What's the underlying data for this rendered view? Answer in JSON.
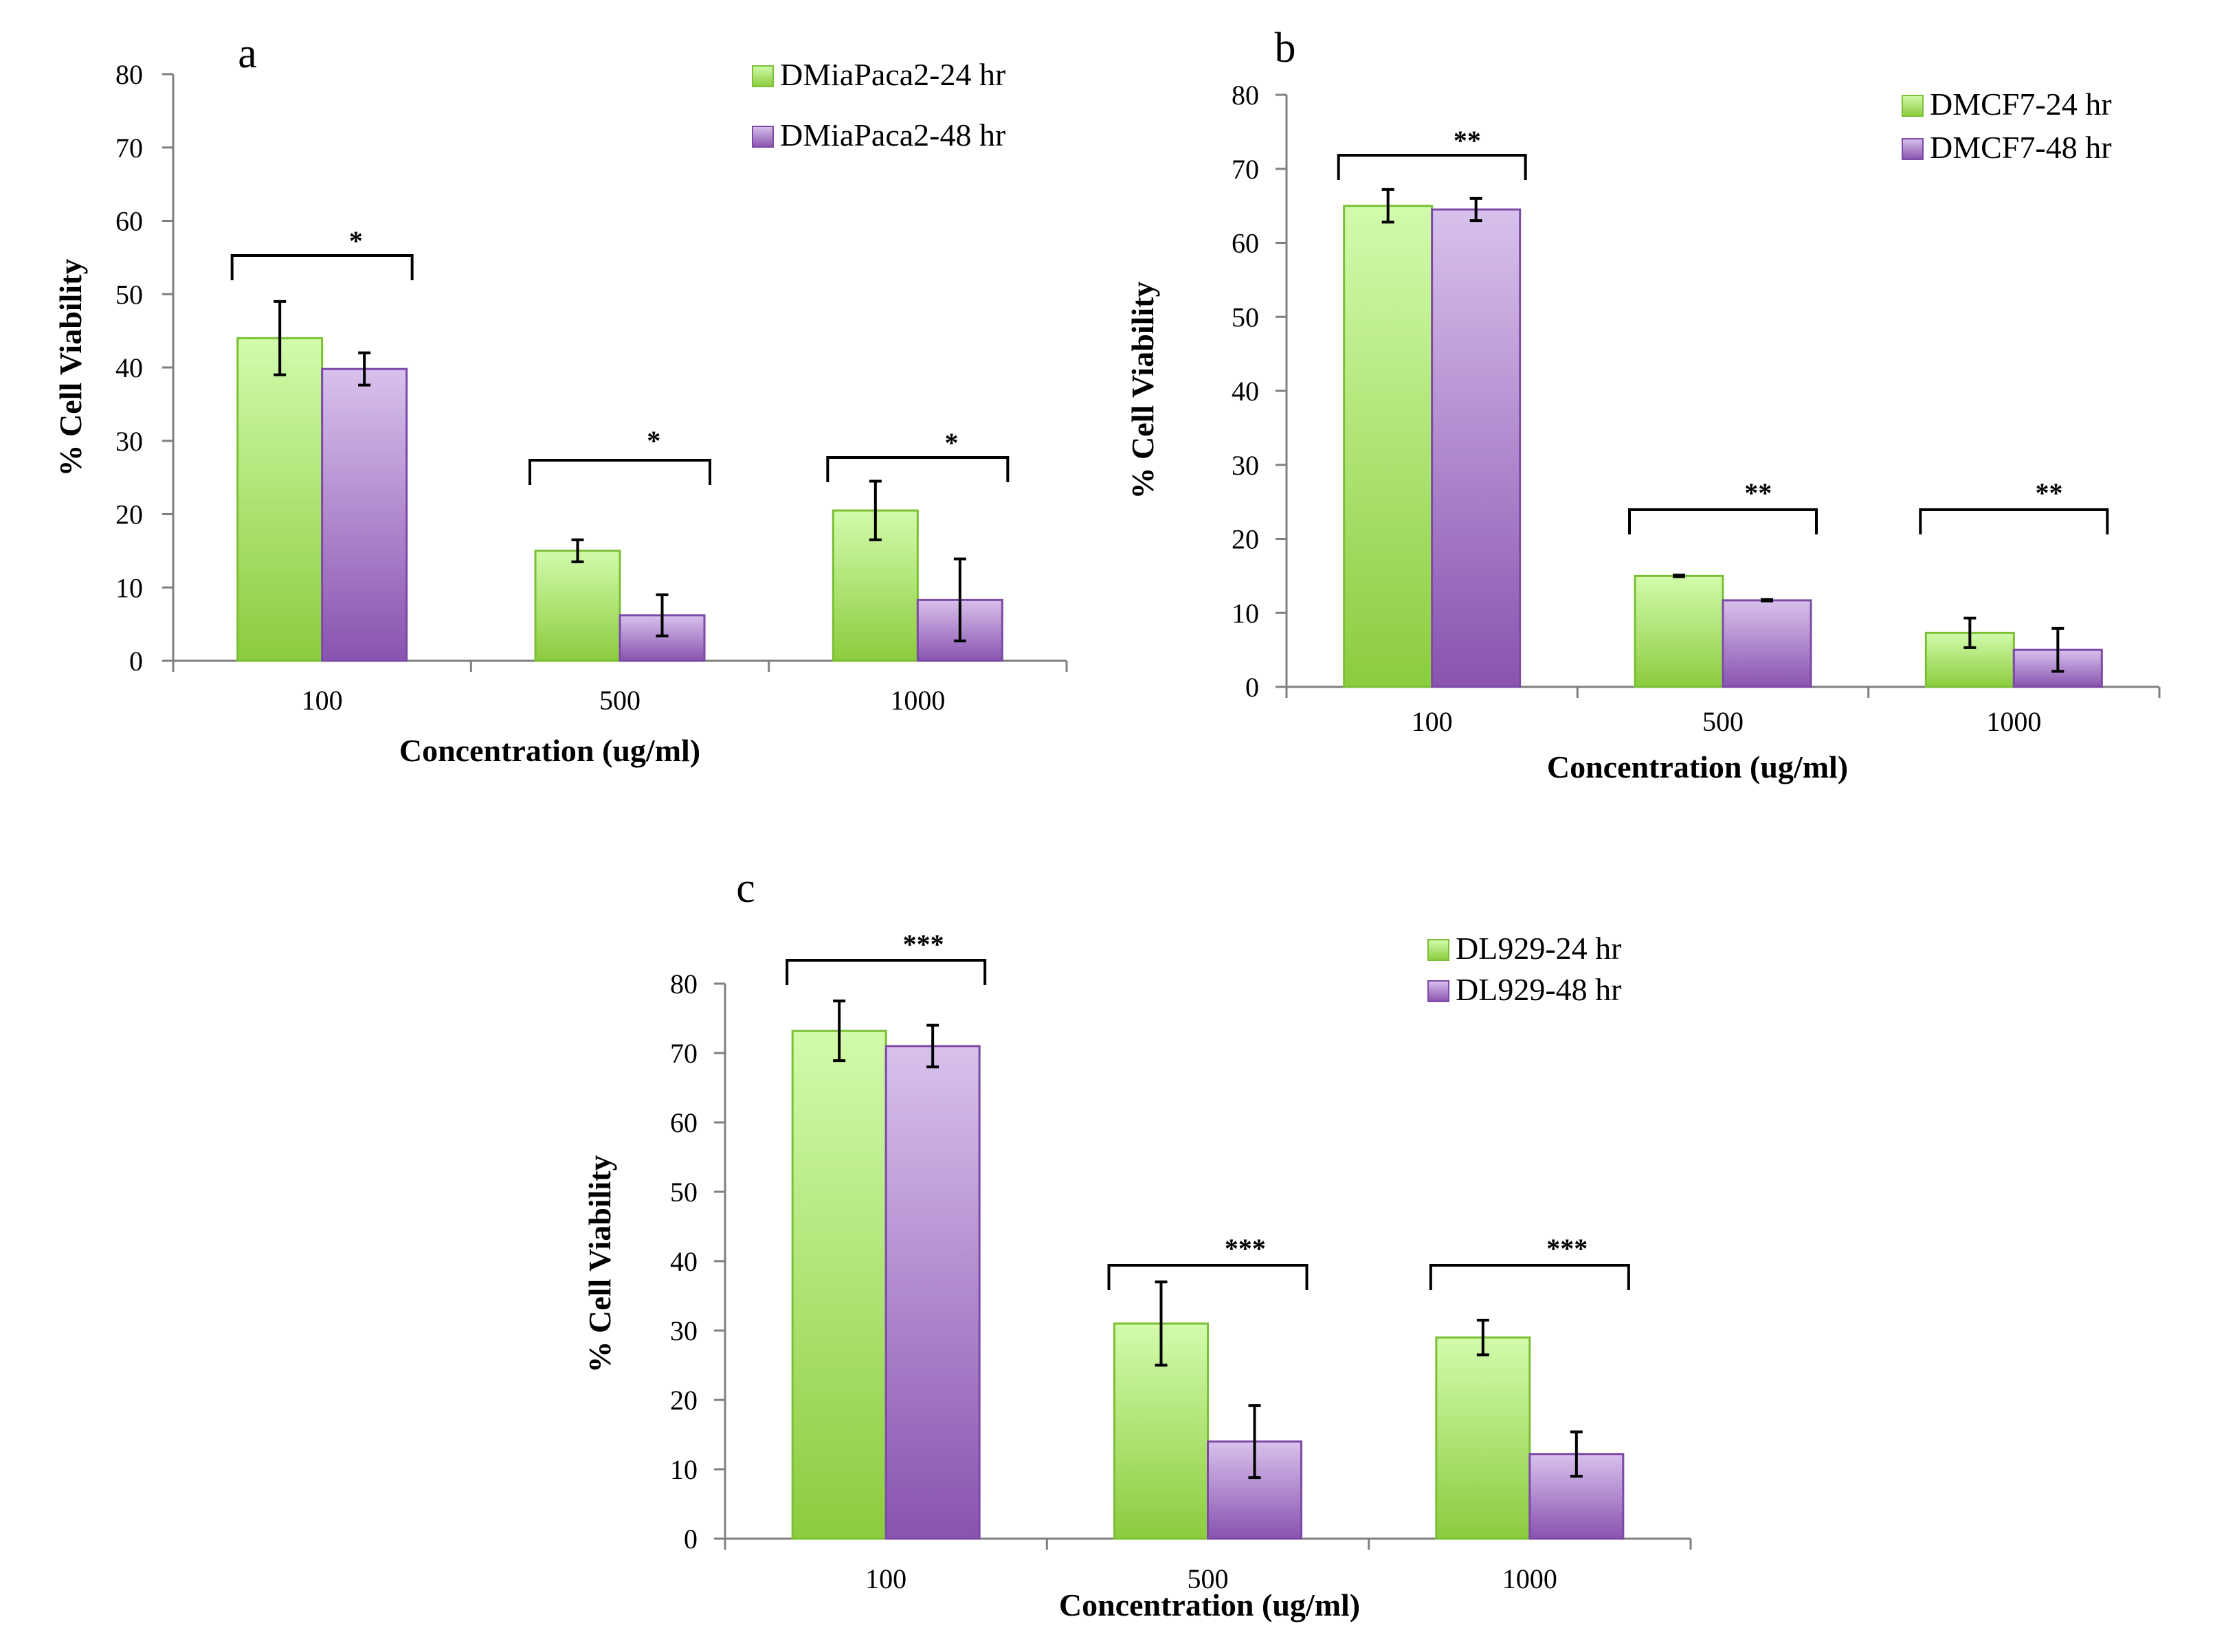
{
  "colors": {
    "series_24_top": "#d2fbac",
    "series_24_bottom": "#8ccc3e",
    "series_24_edge": "#7bbf35",
    "series_48_top": "#d8c1ec",
    "series_48_bottom": "#8953b0",
    "series_48_edge": "#7c4aa6",
    "axis": "#7f7f7f",
    "text": "#000000"
  },
  "chart_data": [
    {
      "panel": "a",
      "type": "bar",
      "title": "",
      "xlabel": "Concentration (ug/ml)",
      "ylabel": "% Cell Viability",
      "ylim": [
        0,
        80
      ],
      "yticks": [
        0,
        10,
        20,
        30,
        40,
        50,
        60,
        70,
        80
      ],
      "categories": [
        "100",
        "500",
        "1000"
      ],
      "legend_position": "top-right",
      "series": [
        {
          "name": "DMiaPaca2-24 hr",
          "values": [
            44,
            15,
            20.5
          ],
          "errors": [
            5,
            1.5,
            4
          ]
        },
        {
          "name": "DMiaPaca2-48 hr",
          "values": [
            39.8,
            6.2,
            8.3
          ],
          "errors": [
            2.2,
            2.8,
            5.6
          ]
        }
      ],
      "significance": [
        "*",
        "*",
        "*"
      ]
    },
    {
      "panel": "b",
      "type": "bar",
      "title": "",
      "xlabel": "Concentration (ug/ml)",
      "ylabel": "% Cell Viability",
      "ylim": [
        0,
        80
      ],
      "yticks": [
        0,
        10,
        20,
        30,
        40,
        50,
        60,
        70,
        80
      ],
      "categories": [
        "100",
        "500",
        "1000"
      ],
      "legend_position": "top-right",
      "series": [
        {
          "name": "DMCF7-24 hr",
          "values": [
            65,
            15,
            7.3
          ],
          "errors": [
            2.2,
            0.1,
            2
          ]
        },
        {
          "name": "DMCF7-48 hr",
          "values": [
            64.5,
            11.7,
            5
          ],
          "errors": [
            1.5,
            0.1,
            2.9
          ]
        }
      ],
      "significance": [
        "**",
        "**",
        "**"
      ]
    },
    {
      "panel": "c",
      "type": "bar",
      "title": "",
      "xlabel": "Concentration (ug/ml)",
      "ylabel": "% Cell Viability",
      "ylim": [
        0,
        80
      ],
      "yticks": [
        0,
        10,
        20,
        30,
        40,
        50,
        60,
        70,
        80
      ],
      "categories": [
        "100",
        "500",
        "1000"
      ],
      "legend_position": "top-right",
      "series": [
        {
          "name": "DL929-24 hr",
          "values": [
            73.2,
            31,
            29
          ],
          "errors": [
            4.3,
            6,
            2.5
          ]
        },
        {
          "name": "DL929-48 hr",
          "values": [
            71,
            14,
            12.2
          ],
          "errors": [
            3,
            5.2,
            3.2
          ]
        }
      ],
      "significance": [
        "***",
        "***",
        "***"
      ]
    }
  ]
}
